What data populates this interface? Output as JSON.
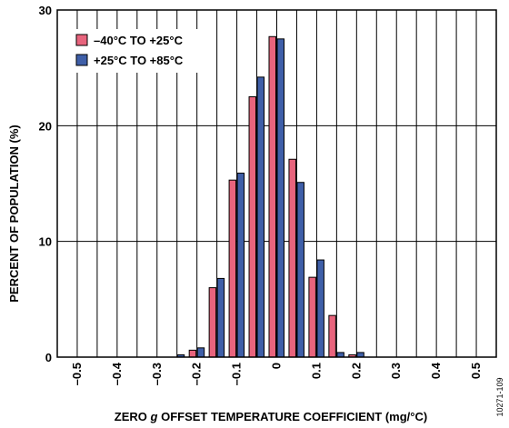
{
  "chart_data": {
    "type": "bar",
    "xlabel_parts": [
      "ZERO ",
      "g",
      " OFFSET TEMPERATURE COEFFICIENT (mg/°C)"
    ],
    "ylabel": "PERCENT OF POPULATION (%)",
    "ylim": [
      0,
      30
    ],
    "yticks": [
      "0",
      "10",
      "20",
      "30"
    ],
    "xlim": [
      -0.55,
      0.55
    ],
    "xticks": [
      -0.5,
      -0.4,
      -0.3,
      -0.2,
      -0.1,
      0,
      0.1,
      0.2,
      0.3,
      0.4,
      0.5
    ],
    "xtick_labels": [
      "–0.5",
      "–0.4",
      "–0.3",
      "–0.2",
      "–0.1",
      "0",
      "0.1",
      "0.2",
      "0.3",
      "0.4",
      "0.5"
    ],
    "grid": true,
    "legend_position": "top-left",
    "x": [
      -0.25,
      -0.2,
      -0.15,
      -0.1,
      -0.05,
      0,
      0.05,
      0.1,
      0.15,
      0.2
    ],
    "series": [
      {
        "name": "–40°C TO +25°C",
        "color": "#e8647d",
        "values": [
          0,
          0.6,
          6.0,
          15.3,
          22.5,
          27.7,
          17.1,
          6.9,
          3.6,
          0.2
        ]
      },
      {
        "name": "+25°C TO +85°C",
        "color": "#3f5fa8",
        "values": [
          0.2,
          0.8,
          6.8,
          15.9,
          24.2,
          27.5,
          15.1,
          8.4,
          0.4,
          0.4
        ]
      }
    ],
    "figure_id": "10271-109"
  }
}
